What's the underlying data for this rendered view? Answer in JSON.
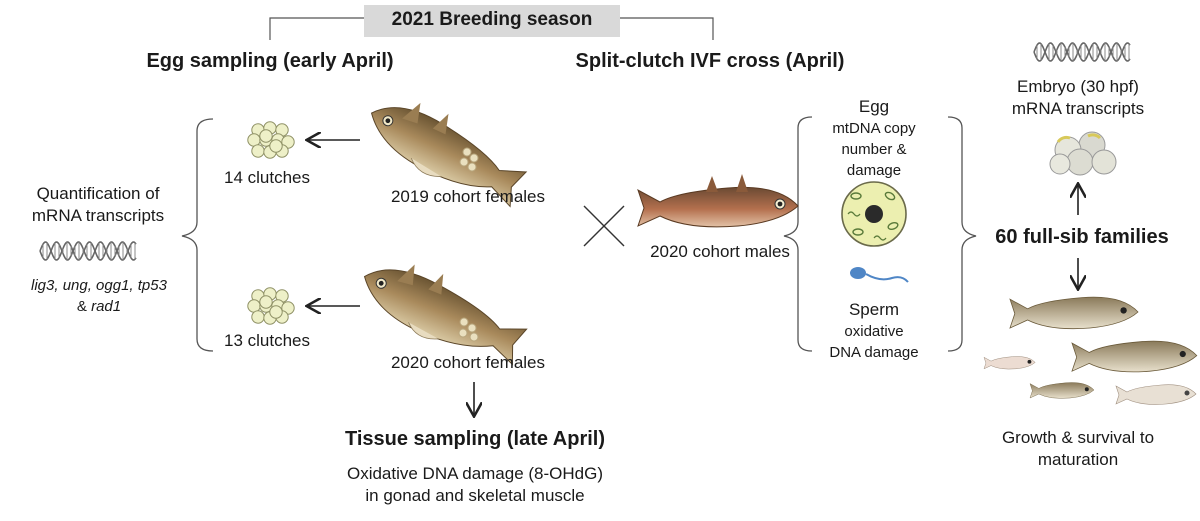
{
  "season": {
    "title": "2021 Breeding season"
  },
  "egg_sampling": {
    "title": "Egg sampling (early April)",
    "clutch_2019": "14 clutches",
    "clutch_2020": "13 clutches",
    "females_2019": "2019 cohort females",
    "females_2020": "2020 cohort females"
  },
  "quantification": {
    "line1": "Quantification of",
    "line2": "mRNA transcripts",
    "genes_line1": "lig3, ung, ogg1, tp53",
    "genes_and": "& ",
    "genes_last": "rad1"
  },
  "ivf": {
    "title": "Split-clutch IVF cross (April)",
    "males": "2020 cohort males"
  },
  "egg_measure": {
    "title": "Egg",
    "line1": "mtDNA copy",
    "line2": "number &",
    "line3": "damage"
  },
  "sperm_measure": {
    "title": "Sperm",
    "line1": "oxidative",
    "line2": "DNA damage"
  },
  "families": {
    "label": "60 full-sib families"
  },
  "embryo": {
    "line1": "Embryo (30 hpf)",
    "line2": "mRNA transcripts"
  },
  "growth": {
    "line1": "Growth & survival to",
    "line2": "maturation"
  },
  "tissue": {
    "title": "Tissue sampling (late April)",
    "line1": "Oxidative DNA damage (8-OHdG)",
    "line2": "in gonad and skeletal muscle"
  },
  "icons": [
    "dna-helix-icon",
    "egg-cluster-icon",
    "fish-illustration",
    "egg-cell-icon",
    "sperm-icon",
    "arrow-icon",
    "cross-icon",
    "bracket-icon"
  ],
  "colors": {
    "banner_bg": "#d9d9d9",
    "fish_body": "#a5865a",
    "fish_dark": "#5f4a2e",
    "egg_fill": "#eef0c8",
    "egg_stroke": "#8f9166",
    "cell_fill": "#ecefb0",
    "sperm_blue": "#4f86c6",
    "line": "#333333"
  }
}
